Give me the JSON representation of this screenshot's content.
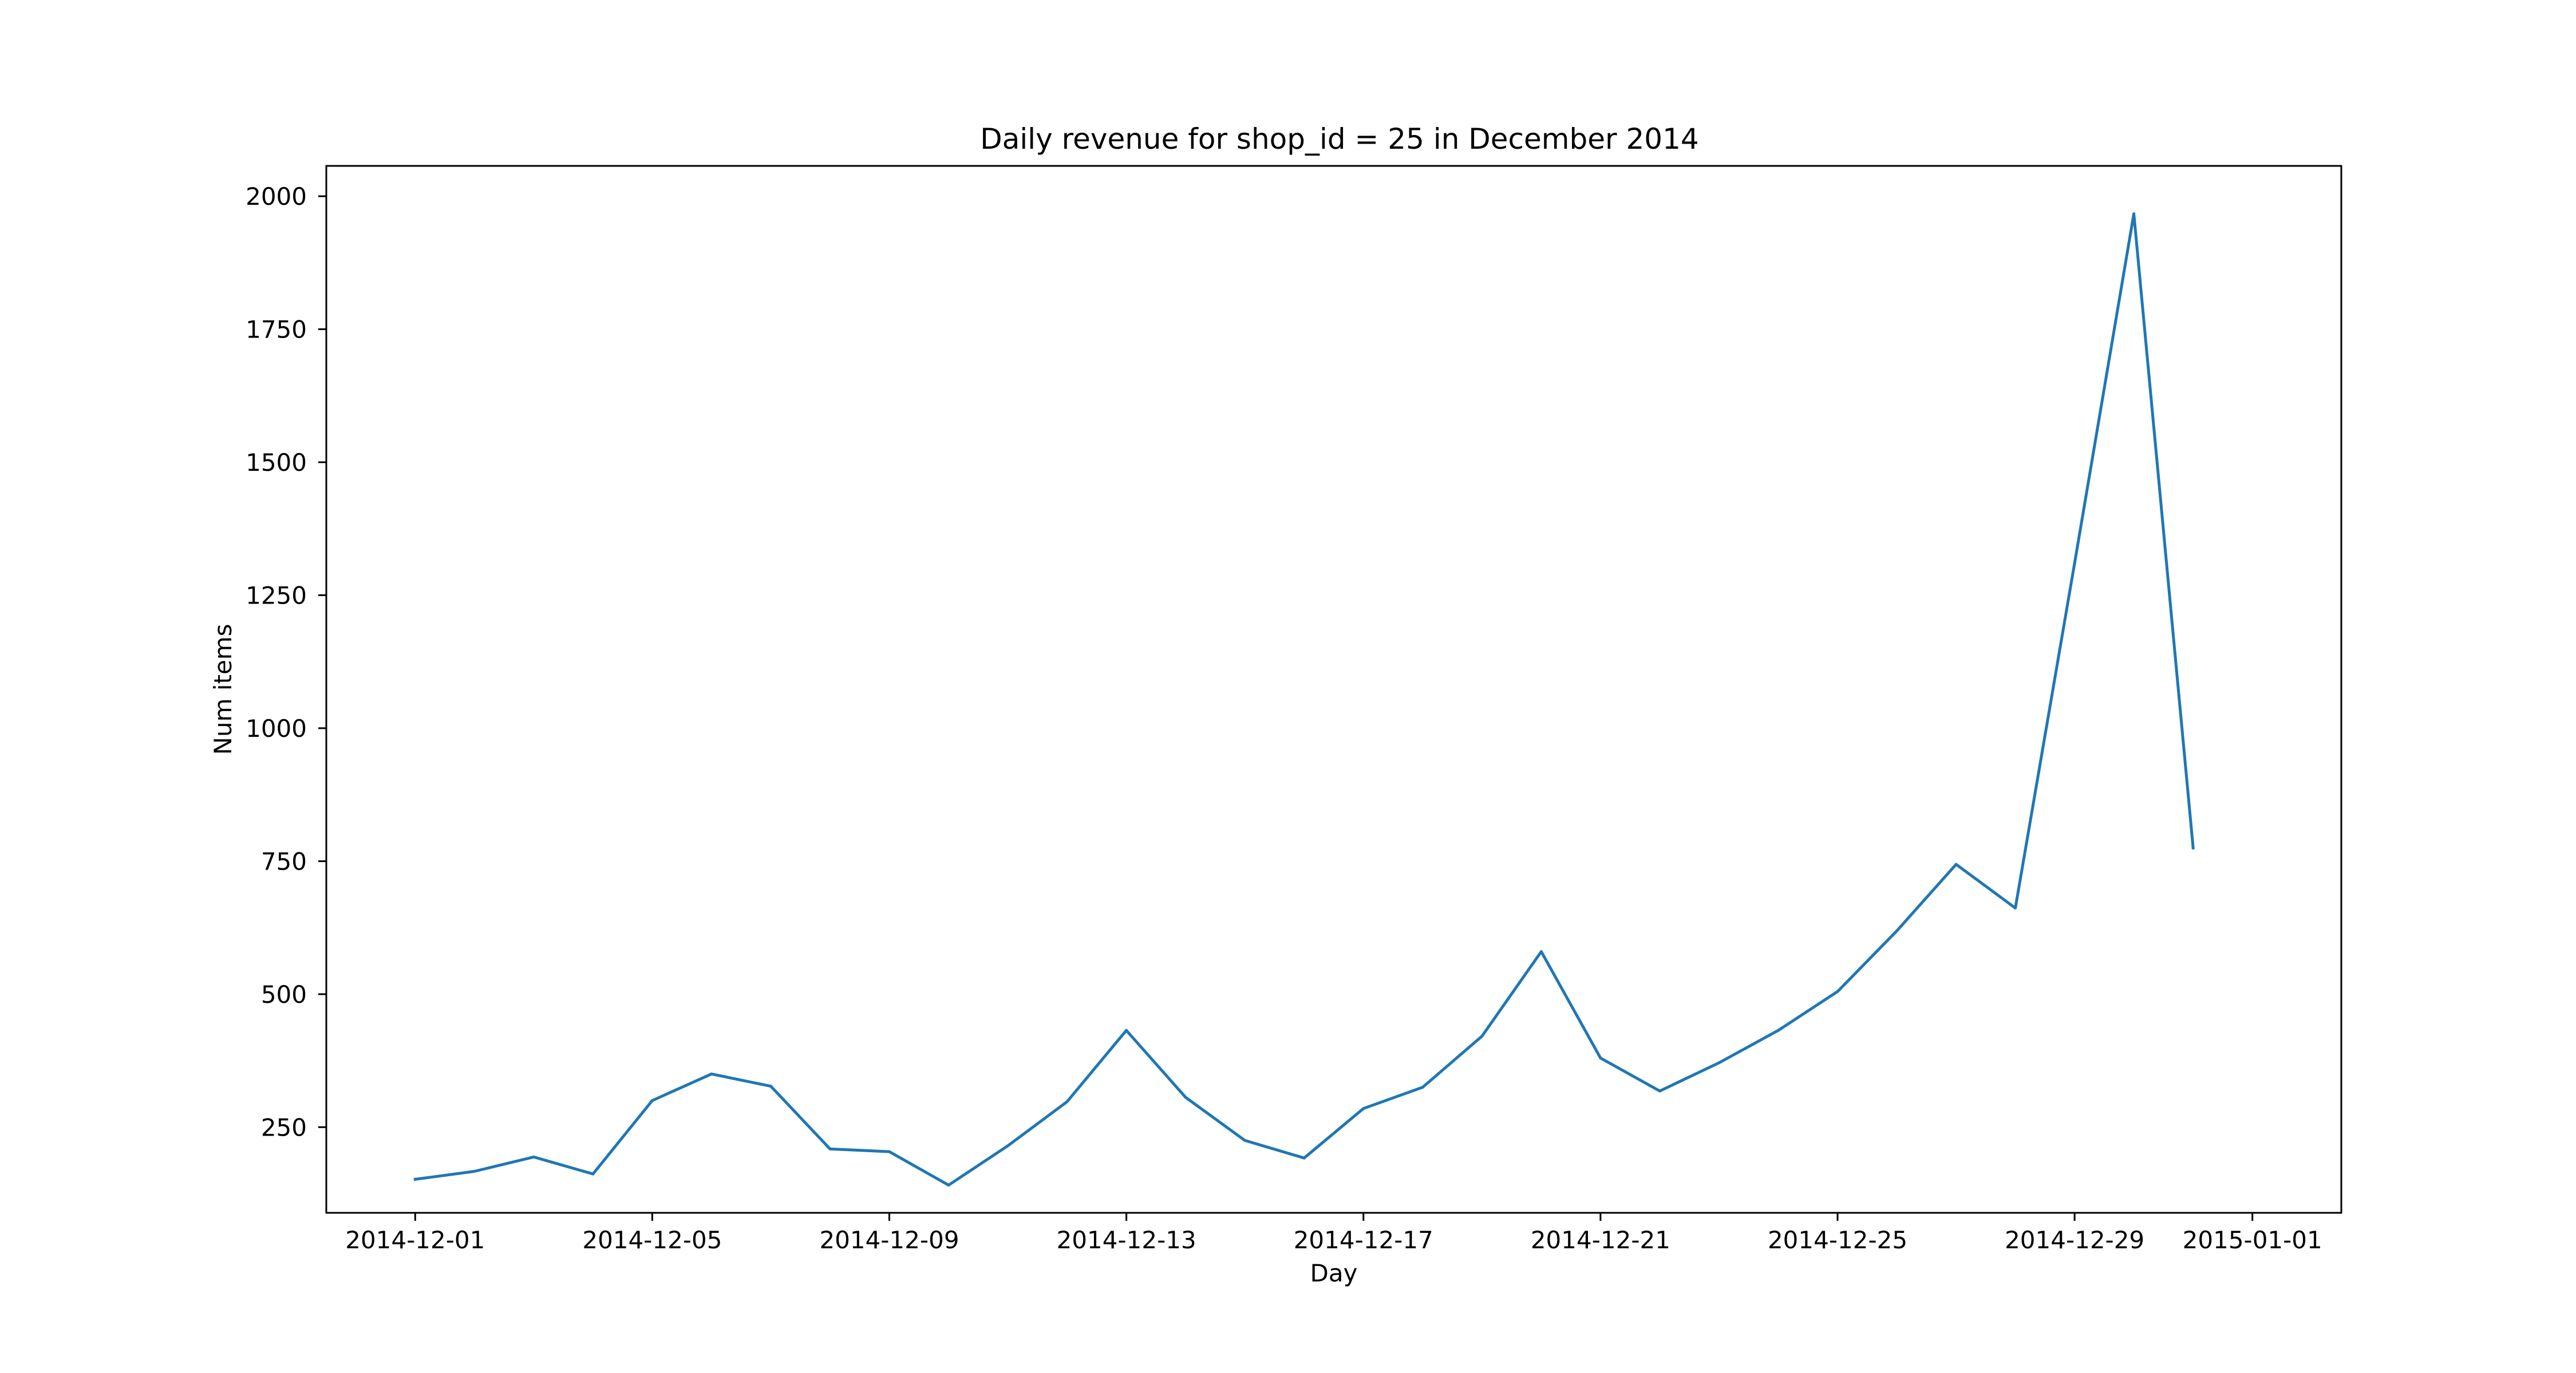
{
  "chart_data": {
    "type": "line",
    "title": "Daily revenue for shop_id = 25 in December 2014",
    "xlabel": "Day",
    "ylabel": "Num items",
    "x_type": "date",
    "xlim": [
      "2014-11-29T12:00",
      "2015-01-02T12:00"
    ],
    "ylim": [
      89,
      2057
    ],
    "x_ticks": [
      "2014-12-01",
      "2014-12-05",
      "2014-12-09",
      "2014-12-13",
      "2014-12-17",
      "2014-12-21",
      "2014-12-25",
      "2014-12-29",
      "2015-01-01"
    ],
    "y_ticks": [
      "250",
      "500",
      "750",
      "1000",
      "1250",
      "1500",
      "1750",
      "2000"
    ],
    "grid": false,
    "line_color": "#1f77b4",
    "series": [
      {
        "x": [
          "2014-12-01",
          "2014-12-02",
          "2014-12-03",
          "2014-12-04",
          "2014-12-05",
          "2014-12-06",
          "2014-12-07",
          "2014-12-08",
          "2014-12-09",
          "2014-12-10",
          "2014-12-11",
          "2014-12-12",
          "2014-12-13",
          "2014-12-14",
          "2014-12-15",
          "2014-12-16",
          "2014-12-17",
          "2014-12-18",
          "2014-12-19",
          "2014-12-20",
          "2014-12-21",
          "2014-12-22",
          "2014-12-23",
          "2014-12-24",
          "2014-12-25",
          "2014-12-26",
          "2014-12-27",
          "2014-12-28",
          "2014-12-29",
          "2014-12-30",
          "2014-12-31"
        ],
        "values": [
          152,
          167,
          194,
          162,
          300,
          350,
          327,
          209,
          204,
          141,
          215,
          298,
          432,
          306,
          225,
          192,
          285,
          325,
          421,
          580,
          380,
          318,
          371,
          432,
          505,
          619,
          744,
          662,
          1310,
          1967,
          775
        ]
      }
    ]
  }
}
